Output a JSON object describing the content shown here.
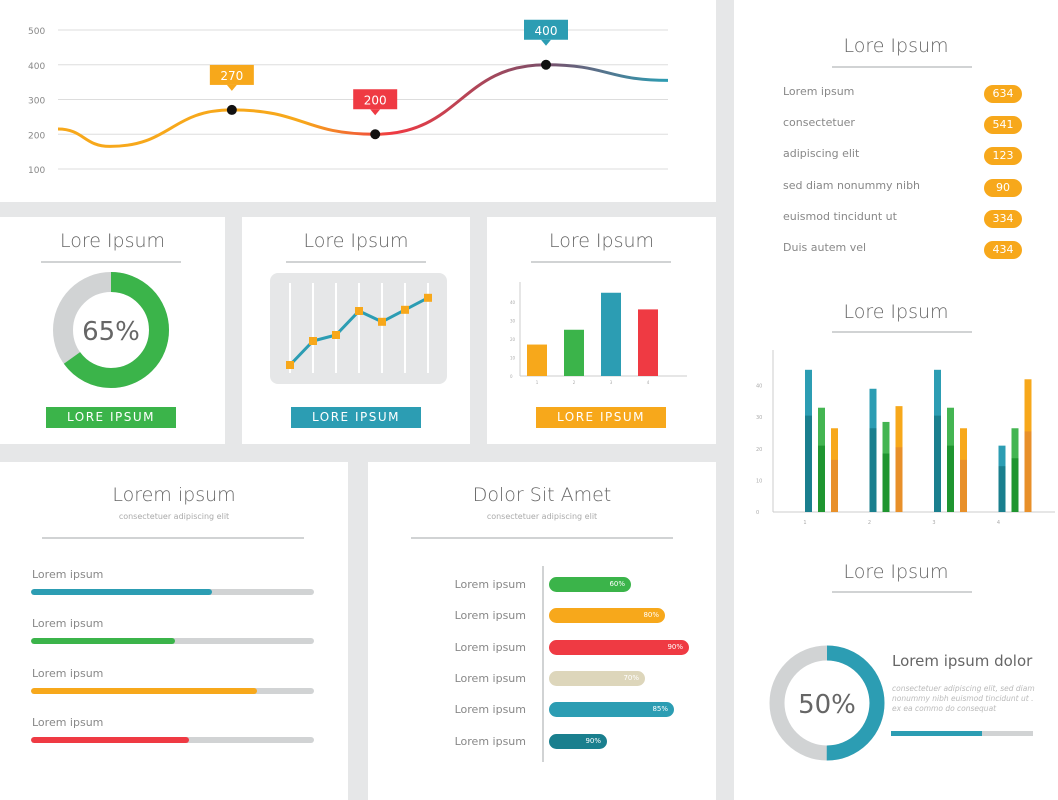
{
  "colors": {
    "orange": "#f7a81b",
    "green": "#3bb44a",
    "teal": "#2c9db3",
    "red": "#ef3a43",
    "beige": "#ddd6bb",
    "darkteal": "#1a7f8e",
    "gray": "#d1d3d4"
  },
  "chart_data": [
    {
      "type": "line",
      "title": "",
      "y_ticks": [
        "500",
        "400",
        "300",
        "200",
        "100"
      ],
      "ylim": [
        100,
        500
      ],
      "points": [
        [
          0,
          215
        ],
        [
          0.085,
          165
        ],
        [
          0.285,
          270
        ],
        [
          0.52,
          200
        ],
        [
          0.8,
          400
        ],
        [
          1,
          355
        ]
      ],
      "callouts": [
        {
          "label": "270",
          "value": 270,
          "color": "#f7a81b"
        },
        {
          "label": "200",
          "value": 200,
          "color": "#ef3a43"
        },
        {
          "label": "400",
          "value": 400,
          "color": "#2c9db3"
        }
      ]
    },
    {
      "type": "pie",
      "title": "Lore Ipsum",
      "value_label": "65%",
      "value": 65,
      "button": "LORE IPSUM"
    },
    {
      "type": "line",
      "title": "Lore Ipsum",
      "values": [
        1,
        3,
        3.5,
        5.5,
        4.6,
        5.6,
        6.6
      ],
      "button": "LORE IPSUM"
    },
    {
      "type": "bar",
      "title": "Lore Ipsum",
      "categories": [
        "1",
        "2",
        "3",
        "4"
      ],
      "values": [
        17,
        25,
        45,
        36
      ],
      "ylim": [
        0,
        50
      ],
      "y_ticks": [
        "0",
        "10",
        "20",
        "30",
        "40"
      ],
      "button": "LORE IPSUM"
    },
    {
      "type": "bar",
      "title": "Lore Ipsum",
      "categories": [
        "1",
        "2",
        "3",
        "4"
      ],
      "ylim": [
        0,
        50
      ],
      "y_ticks": [
        "0",
        "10",
        "20",
        "30",
        "40"
      ],
      "series": [
        {
          "name": "teal",
          "values": [
            45,
            39,
            45,
            21
          ],
          "inner": [
            30.5,
            26.5,
            30.5,
            14.5
          ]
        },
        {
          "name": "green",
          "values": [
            33,
            28.5,
            33,
            26.5
          ],
          "inner": [
            21,
            18.5,
            21,
            17
          ]
        },
        {
          "name": "orange",
          "values": [
            26.5,
            33.5,
            26.5,
            42
          ],
          "inner": [
            16.5,
            20.5,
            16.5,
            25.5
          ]
        }
      ]
    },
    {
      "type": "pie",
      "title": "Lore Ipsum",
      "value_label": "50%",
      "value": 50
    }
  ],
  "list": {
    "title": "Lore Ipsum",
    "items": [
      {
        "label": "Lorem ipsum",
        "value": "634"
      },
      {
        "label": "consectetuer",
        "value": "541"
      },
      {
        "label": "adipiscing elit",
        "value": "123"
      },
      {
        "label": "sed diam nonummy nibh",
        "value": "90"
      },
      {
        "label": "euismod tincidunt ut",
        "value": "334"
      },
      {
        "label": "Duis autem vel",
        "value": "434"
      }
    ]
  },
  "progress": {
    "title": "Lorem ipsum",
    "subtitle": "consectetuer adipiscing elit",
    "items": [
      {
        "label": "Lorem ipsum",
        "fraction": 0.64,
        "color": "#2c9db3"
      },
      {
        "label": "Lorem ipsum",
        "fraction": 0.51,
        "color": "#3bb44a"
      },
      {
        "label": "Lorem ipsum",
        "fraction": 0.8,
        "color": "#f7a81b"
      },
      {
        "label": "Lorem ipsum",
        "fraction": 0.56,
        "color": "#ef3a43"
      }
    ]
  },
  "hbars": {
    "title": "Dolor Sit Amet",
    "subtitle": "consectetuer adipiscing elit",
    "items": [
      {
        "label": "Lorem ipsum",
        "value": "60%",
        "color": "#3bb44a"
      },
      {
        "label": "Lorem ipsum",
        "value": "80%",
        "color": "#f7a81b"
      },
      {
        "label": "Lorem ipsum",
        "value": "90%",
        "color": "#ef3a43"
      },
      {
        "label": "Lorem ipsum",
        "value": "70%",
        "color": "#ddd6bb"
      },
      {
        "label": "Lorem ipsum",
        "value": "85%",
        "color": "#2c9db3"
      },
      {
        "label": "Lorem ipsum",
        "value": "90%",
        "color": "#1a7f8e"
      }
    ]
  },
  "donut2": {
    "heading": "Lorem ipsum dolor",
    "text": "consectetuer adipiscing elit, sed diam nonummy nibh euismod tincidunt ut . ex ea commo do consequat",
    "bar_fraction": 0.64
  }
}
